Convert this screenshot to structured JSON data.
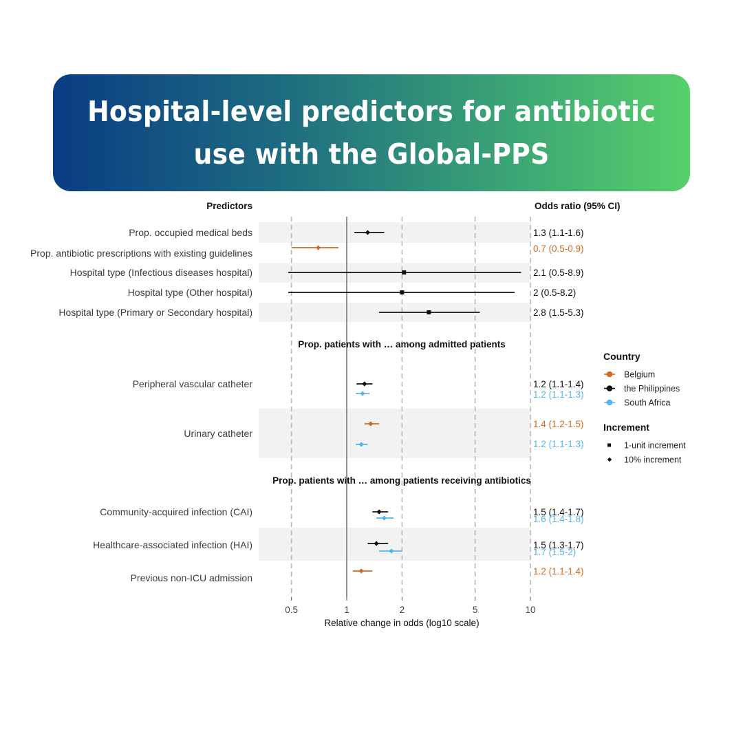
{
  "header": {
    "title": "Hospital-level predictors for antibiotic use with the Global-PPS"
  },
  "colors": {
    "Belgium": "#d2691e",
    "the Philippines": "#111111",
    "South Africa": "#56b4e9",
    "band": "#f2f2f2"
  },
  "chart_data": {
    "type": "forest",
    "column_headers": {
      "predictors": "Predictors",
      "odds_ratio": "Odds ratio (95% CI)"
    },
    "xlabel": "Relative change in odds (log10 scale)",
    "x_scale": "log10",
    "xlim": [
      0.45,
      10
    ],
    "x_ticks": [
      {
        "value": 0.5,
        "label": "0.5"
      },
      {
        "value": 1,
        "label": "1"
      },
      {
        "value": 2,
        "label": "2"
      },
      {
        "value": 5,
        "label": "5"
      },
      {
        "value": 10,
        "label": "10"
      }
    ],
    "reference_line": 1,
    "legend": {
      "placement": "right",
      "country_title": "Country",
      "countries": [
        "Belgium",
        "the Philippines",
        "South Africa"
      ],
      "increment_title": "Increment",
      "increments": [
        {
          "label": "1-unit increment",
          "shape": "square"
        },
        {
          "label": "10% increment",
          "shape": "diamond"
        }
      ]
    },
    "sections": [
      {
        "title": "",
        "rows": [
          {
            "label": "Prop. occupied medical beds",
            "band": true,
            "estimates": [
              {
                "country": "the Philippines",
                "or": 1.3,
                "lo": 1.1,
                "hi": 1.6,
                "shape": "diamond",
                "text": "1.3 (1.1-1.6)"
              }
            ]
          },
          {
            "label": "Prop. antibiotic prescriptions with existing guidelines",
            "band": false,
            "estimates": [
              {
                "country": "Belgium",
                "or": 0.7,
                "lo": 0.5,
                "hi": 0.9,
                "shape": "diamond",
                "text": "0.7 (0.5-0.9)"
              }
            ]
          },
          {
            "label": "Hospital type (Infectious diseases hospital)",
            "band": true,
            "estimates": [
              {
                "country": "the Philippines",
                "or": 2.05,
                "lo": 0.48,
                "hi": 8.9,
                "shape": "square",
                "text": "2.1 (0.5-8.9)"
              }
            ]
          },
          {
            "label": "Hospital type (Other hospital)",
            "band": false,
            "estimates": [
              {
                "country": "the Philippines",
                "or": 2.0,
                "lo": 0.48,
                "hi": 8.2,
                "shape": "square",
                "text": "2 (0.5-8.2)"
              }
            ]
          },
          {
            "label": "Hospital type (Primary or Secondary hospital)",
            "band": true,
            "estimates": [
              {
                "country": "the Philippines",
                "or": 2.8,
                "lo": 1.5,
                "hi": 5.3,
                "shape": "square",
                "text": "2.8 (1.5-5.3)"
              }
            ]
          }
        ]
      },
      {
        "title": "Prop. patients with … among admitted patients",
        "rows": [
          {
            "label": "Peripheral vascular catheter",
            "band": false,
            "estimates": [
              {
                "country": "the Philippines",
                "or": 1.25,
                "lo": 1.13,
                "hi": 1.38,
                "shape": "diamond",
                "text": "1.2 (1.1-1.4)"
              },
              {
                "country": "South Africa",
                "or": 1.22,
                "lo": 1.12,
                "hi": 1.33,
                "shape": "diamond",
                "text": "1.2 (1.1-1.3)"
              }
            ]
          },
          {
            "label": "Urinary catheter",
            "band": true,
            "estimates": [
              {
                "country": "Belgium",
                "or": 1.35,
                "lo": 1.25,
                "hi": 1.5,
                "shape": "diamond",
                "text": "1.4 (1.2-1.5)"
              },
              {
                "country": "South Africa",
                "or": 1.2,
                "lo": 1.12,
                "hi": 1.3,
                "shape": "diamond",
                "text": "1.2 (1.1-1.3)"
              }
            ]
          }
        ]
      },
      {
        "title": "Prop. patients with … among patients receiving antibiotics",
        "rows": [
          {
            "label": "Community-acquired infection (CAI)",
            "band": false,
            "estimates": [
              {
                "country": "the Philippines",
                "or": 1.5,
                "lo": 1.38,
                "hi": 1.68,
                "shape": "diamond",
                "text": "1.5 (1.4-1.7)"
              },
              {
                "country": "South Africa",
                "or": 1.6,
                "lo": 1.45,
                "hi": 1.8,
                "shape": "diamond",
                "text": "1.6 (1.4-1.8)"
              }
            ]
          },
          {
            "label": "Healthcare-associated infection (HAI)",
            "band": true,
            "estimates": [
              {
                "country": "the Philippines",
                "or": 1.45,
                "lo": 1.3,
                "hi": 1.68,
                "shape": "diamond",
                "text": "1.5 (1.3-1.7)"
              },
              {
                "country": "South Africa",
                "or": 1.75,
                "lo": 1.5,
                "hi": 2.0,
                "shape": "diamond",
                "text": "1.7 (1.5-2)"
              }
            ]
          },
          {
            "label": "Previous non-ICU admission",
            "band": false,
            "estimates": [
              {
                "country": "Belgium",
                "or": 1.2,
                "lo": 1.08,
                "hi": 1.38,
                "shape": "diamond",
                "text": "1.2 (1.1-1.4)"
              }
            ]
          }
        ]
      }
    ]
  }
}
